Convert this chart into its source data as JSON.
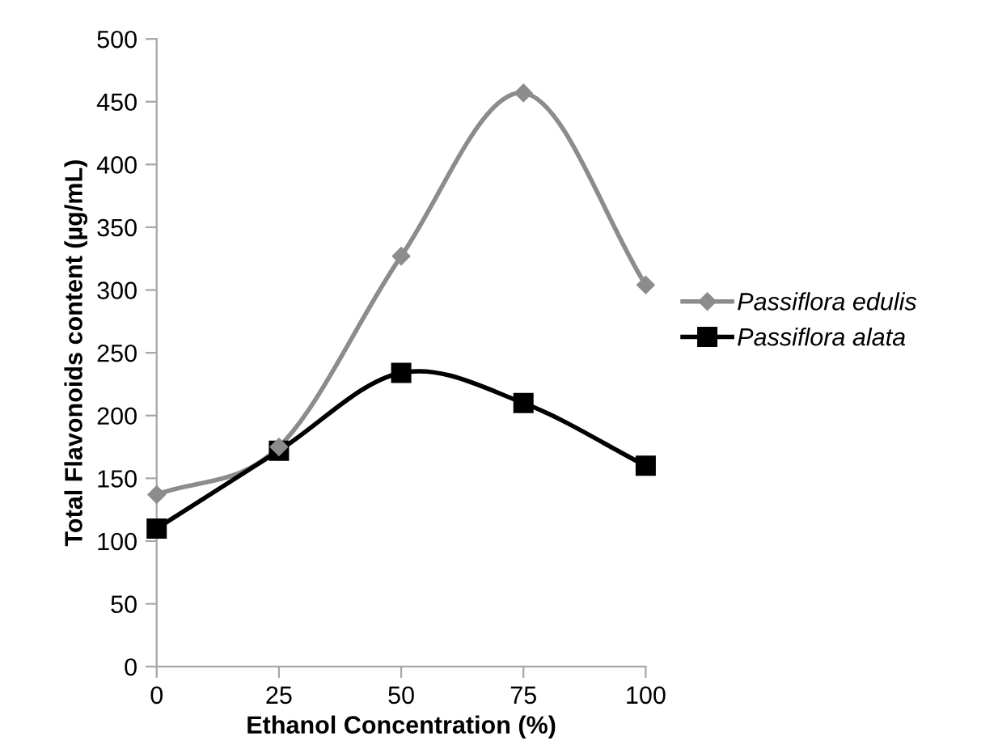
{
  "chart_data": {
    "type": "line",
    "xlabel": "Ethanol Concentration (%)",
    "ylabel": "Total Flavonoids content (µg/mL)",
    "categories": [
      "0",
      "25",
      "50",
      "75",
      "100"
    ],
    "series": [
      {
        "name": "Passiflora edulis",
        "color": "#8c8c8c",
        "marker": "diamond",
        "values": [
          137,
          175,
          327,
          457,
          304
        ]
      },
      {
        "name": "Passiflora alata",
        "color": "#000000",
        "marker": "square",
        "values": [
          110,
          172,
          234,
          210,
          160
        ]
      }
    ],
    "ylim": [
      0,
      500
    ],
    "yticks": [
      0,
      50,
      100,
      150,
      200,
      250,
      300,
      350,
      400,
      450,
      500
    ],
    "grid": false,
    "legend": "right",
    "line_style": "solid"
  }
}
